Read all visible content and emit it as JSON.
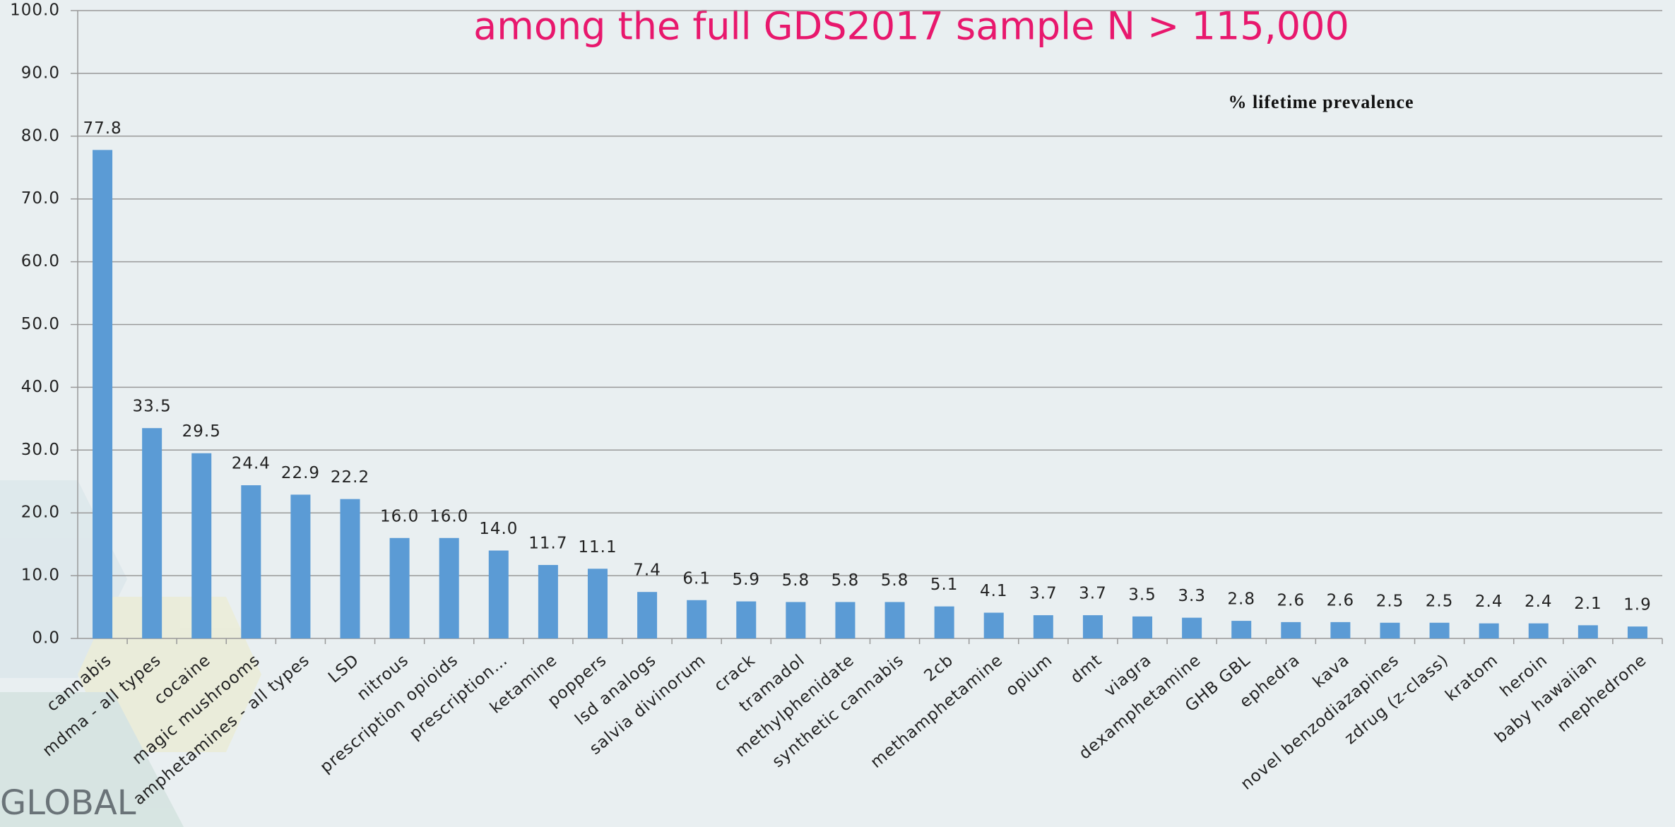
{
  "chart_data": {
    "type": "bar",
    "title": "among the full GDS2017 sample N > 115,000",
    "annotation": "% lifetime prevalence",
    "logo": "GLOBAL",
    "categories": [
      "cannabis",
      "mdma - all types",
      "cocaine",
      "magic mushrooms",
      "amphetamines - all types",
      "LSD",
      "nitrous",
      "prescription opioids",
      "prescription…",
      "ketamine",
      "poppers",
      "lsd analogs",
      "salvia divinorum",
      "crack",
      "tramadol",
      "methylphenidate",
      "synthetic cannabis",
      "2cb",
      "methamphetamine",
      "opium",
      "dmt",
      "viagra",
      "dexamphetamine",
      "GHB GBL",
      "ephedra",
      "kava",
      "novel benzodiazapines",
      "zdrug (z-class)",
      "kratom",
      "heroin",
      "baby hawaiian",
      "mephedrone"
    ],
    "values": [
      77.8,
      33.5,
      29.5,
      24.4,
      22.9,
      22.2,
      16.0,
      16.0,
      14.0,
      11.7,
      11.1,
      7.4,
      6.1,
      5.9,
      5.8,
      5.8,
      5.8,
      5.1,
      4.1,
      3.7,
      3.7,
      3.5,
      3.3,
      2.8,
      2.6,
      2.6,
      2.5,
      2.5,
      2.4,
      2.4,
      2.1,
      1.9
    ],
    "value_labels": [
      "77.8",
      "33.5",
      "29.5",
      "24.4",
      "22.9",
      "22.2",
      "16.0",
      "16.0",
      "14.0",
      "11.7",
      "11.1",
      "7.4",
      "6.1",
      "5.9",
      "5.8",
      "5.8",
      "5.8",
      "5.1",
      "4.1",
      "3.7",
      "3.7",
      "3.5",
      "3.3",
      "2.8",
      "2.6",
      "2.6",
      "2.5",
      "2.5",
      "2.4",
      "2.4",
      "2.1",
      "1.9"
    ],
    "color": "#5b9bd5",
    "ylim": [
      0,
      100
    ],
    "yticks": [
      {
        "value": 0,
        "label": "0.0"
      },
      {
        "value": 10,
        "label": "10.0"
      },
      {
        "value": 20,
        "label": "20.0"
      },
      {
        "value": 30,
        "label": "30.0"
      },
      {
        "value": 40,
        "label": "40.0"
      },
      {
        "value": 50,
        "label": "50.0"
      },
      {
        "value": 60,
        "label": "60.0"
      },
      {
        "value": 70,
        "label": "70.0"
      },
      {
        "value": 80,
        "label": "80.0"
      },
      {
        "value": 90,
        "label": "90.0"
      },
      {
        "value": 100,
        "label": "100.0"
      }
    ],
    "grid": true
  }
}
